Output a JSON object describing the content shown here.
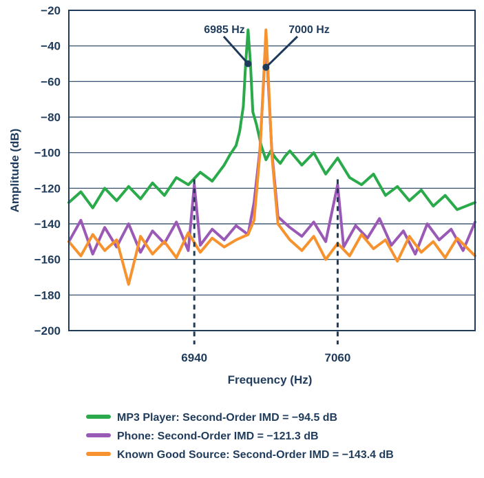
{
  "chart_data": {
    "type": "line",
    "title": "",
    "xlabel": "Frequency (Hz)",
    "ylabel": "Amplitude (dB)",
    "ylim": [
      -200,
      -20
    ],
    "yticks": [
      -20,
      -40,
      -60,
      -80,
      -100,
      -120,
      -140,
      -160,
      -180,
      -200
    ],
    "ytick_labels": [
      "−20",
      "−40",
      "−60",
      "−80",
      "−100",
      "−120",
      "−140",
      "−160",
      "−180",
      "−200"
    ],
    "grid": true,
    "xlim": [
      6835,
      7175
    ],
    "xticks": [
      {
        "value": 6940,
        "label": "6940"
      },
      {
        "value": 7060,
        "label": "7060"
      }
    ],
    "annotations": [
      {
        "label": "6985 Hz",
        "target_x": 6985,
        "target_y": -50
      },
      {
        "label": "7000 Hz",
        "target_x": 7000,
        "target_y": -52
      }
    ],
    "series": [
      {
        "name": "MP3 Player: Second-Order IMD = −94.5 dB",
        "color": "#2aaa4a",
        "x": [
          6835,
          6845,
          6855,
          6865,
          6875,
          6885,
          6895,
          6905,
          6915,
          6925,
          6935,
          6945,
          6955,
          6965,
          6970,
          6975,
          6978,
          6981,
          6983,
          6985,
          6987,
          6989,
          6992,
          6996,
          7000,
          7004,
          7008,
          7012,
          7016,
          7020,
          7030,
          7040,
          7050,
          7060,
          7070,
          7080,
          7090,
          7100,
          7110,
          7120,
          7130,
          7140,
          7150,
          7160,
          7175
        ],
        "values": [
          -128,
          -122,
          -131,
          -120,
          -127,
          -119,
          -126,
          -117,
          -124,
          -114,
          -118,
          -111,
          -116,
          -107,
          -101,
          -96,
          -88,
          -74,
          -50,
          -31,
          -50,
          -77,
          -84,
          -96,
          -104,
          -99,
          -103,
          -106,
          -102,
          -99,
          -107,
          -100,
          -112,
          -103,
          -114,
          -118,
          -112,
          -124,
          -119,
          -127,
          -121,
          -130,
          -124,
          -132,
          -128
        ],
        "legend": "MP3 Player: Second-Order IMD = −94.5 dB"
      },
      {
        "name": "Phone: Second-Order IMD = −121.3 dB",
        "color": "#9b59b6",
        "x": [
          6835,
          6845,
          6855,
          6865,
          6875,
          6885,
          6895,
          6905,
          6915,
          6925,
          6935,
          6940,
          6945,
          6955,
          6965,
          6975,
          6985,
          6990,
          6995,
          6998,
          7000,
          7002,
          7005,
          7010,
          7020,
          7030,
          7040,
          7050,
          7060,
          7065,
          7075,
          7085,
          7095,
          7105,
          7115,
          7125,
          7135,
          7145,
          7155,
          7165,
          7175
        ],
        "values": [
          -150,
          -138,
          -157,
          -142,
          -153,
          -140,
          -156,
          -144,
          -151,
          -139,
          -155,
          -118,
          -152,
          -143,
          -149,
          -141,
          -146,
          -128,
          -98,
          -60,
          -35,
          -62,
          -100,
          -136,
          -142,
          -147,
          -139,
          -150,
          -118,
          -153,
          -141,
          -148,
          -137,
          -152,
          -144,
          -157,
          -140,
          -149,
          -143,
          -155,
          -139
        ],
        "legend": "Phone: Second-Order IMD = −121.3 dB"
      },
      {
        "name": "Known Good Source: Second-Order IMD = −143.4 dB",
        "color": "#f7932f",
        "x": [
          6835,
          6845,
          6855,
          6865,
          6875,
          6885,
          6895,
          6905,
          6915,
          6925,
          6935,
          6945,
          6955,
          6965,
          6975,
          6985,
          6990,
          6995,
          6998,
          7000,
          7002,
          7005,
          7010,
          7020,
          7030,
          7040,
          7050,
          7060,
          7070,
          7080,
          7090,
          7100,
          7110,
          7120,
          7130,
          7140,
          7150,
          7160,
          7175
        ],
        "values": [
          -150,
          -158,
          -146,
          -155,
          -149,
          -174,
          -147,
          -157,
          -150,
          -159,
          -145,
          -156,
          -148,
          -153,
          -149,
          -146,
          -138,
          -100,
          -58,
          -31,
          -58,
          -102,
          -140,
          -149,
          -155,
          -147,
          -160,
          -151,
          -158,
          -146,
          -154,
          -149,
          -161,
          -147,
          -156,
          -150,
          -159,
          -148,
          -158
        ],
        "legend": "Known Good Source: Second-Order IMD = −143.4 dB"
      }
    ]
  }
}
